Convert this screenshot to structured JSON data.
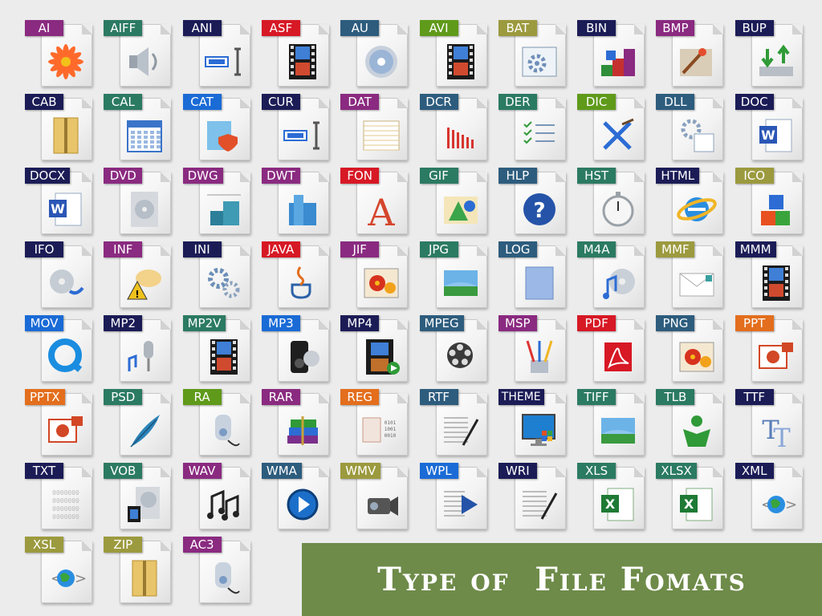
{
  "banner": {
    "title": "Type of  File Fomats"
  },
  "colors": {
    "banner": "#6e8b49",
    "purple": "#8a2a80",
    "teal": "#2b7a62",
    "navy": "#1b1c56",
    "red": "#d71825",
    "steel": "#2d5c7d",
    "green": "#5f9a1a",
    "olive": "#9c9a3e",
    "blue": "#1a6bd6",
    "orange": "#e36e1d"
  },
  "file_types": [
    {
      "label": "AI",
      "color": "purple",
      "icon": "flower-icon"
    },
    {
      "label": "AIFF",
      "color": "teal",
      "icon": "speaker-icon"
    },
    {
      "label": "ANI",
      "color": "navy",
      "icon": "text-cursor-icon"
    },
    {
      "label": "ASF",
      "color": "red",
      "icon": "film-strip-icon"
    },
    {
      "label": "AU",
      "color": "steel",
      "icon": "cd-icon"
    },
    {
      "label": "AVI",
      "color": "green",
      "icon": "film-strip-icon"
    },
    {
      "label": "BAT",
      "color": "olive",
      "icon": "gear-window-icon"
    },
    {
      "label": "BIN",
      "color": "navy",
      "icon": "blocks-icon"
    },
    {
      "label": "BMP",
      "color": "purple",
      "icon": "paint-brush-icon"
    },
    {
      "label": "BUP",
      "color": "navy",
      "icon": "backup-drive-icon"
    },
    {
      "label": "CAB",
      "color": "navy",
      "icon": "zip-folder-icon"
    },
    {
      "label": "CAL",
      "color": "teal",
      "icon": "calendar-icon"
    },
    {
      "label": "CAT",
      "color": "blue",
      "icon": "security-catalog-icon"
    },
    {
      "label": "CUR",
      "color": "navy",
      "icon": "text-cursor-icon"
    },
    {
      "label": "DAT",
      "color": "purple",
      "icon": "spreadsheet-icon"
    },
    {
      "label": "DCR",
      "color": "steel",
      "icon": "bar-chart-icon"
    },
    {
      "label": "DER",
      "color": "teal",
      "icon": "checklist-icon"
    },
    {
      "label": "DIC",
      "color": "green",
      "icon": "pen-arrows-icon"
    },
    {
      "label": "DLL",
      "color": "steel",
      "icon": "gear-doc-icon"
    },
    {
      "label": "DOC",
      "color": "navy",
      "icon": "word-icon"
    },
    {
      "label": "DOCX",
      "color": "navy",
      "icon": "word-icon"
    },
    {
      "label": "DVD",
      "color": "purple",
      "icon": "dvd-icon"
    },
    {
      "label": "DWG",
      "color": "purple",
      "icon": "cad-drawing-icon"
    },
    {
      "label": "DWT",
      "color": "purple",
      "icon": "building-icon"
    },
    {
      "label": "FON",
      "color": "red",
      "icon": "font-letter-icon"
    },
    {
      "label": "GIF",
      "color": "teal",
      "icon": "shapes-picture-icon"
    },
    {
      "label": "HLP",
      "color": "steel",
      "icon": "help-question-icon"
    },
    {
      "label": "HST",
      "color": "teal",
      "icon": "stopwatch-icon"
    },
    {
      "label": "HTML",
      "color": "navy",
      "icon": "internet-explorer-icon"
    },
    {
      "label": "ICO",
      "color": "olive",
      "icon": "cubes-icon"
    },
    {
      "label": "IFO",
      "color": "navy",
      "icon": "dvd-sync-icon"
    },
    {
      "label": "INF",
      "color": "purple",
      "icon": "speech-bubble-warning-icon"
    },
    {
      "label": "INI",
      "color": "navy",
      "icon": "gears-icon"
    },
    {
      "label": "JAVA",
      "color": "red",
      "icon": "java-cup-icon"
    },
    {
      "label": "JIF",
      "color": "purple",
      "icon": "flower-photo-icon"
    },
    {
      "label": "JPG",
      "color": "teal",
      "icon": "landscape-photo-icon"
    },
    {
      "label": "LOG",
      "color": "steel",
      "icon": "notepad-icon"
    },
    {
      "label": "M4A",
      "color": "teal",
      "icon": "music-cd-icon"
    },
    {
      "label": "MMF",
      "color": "olive",
      "icon": "envelope-icon"
    },
    {
      "label": "MMM",
      "color": "navy",
      "icon": "film-strip-icon"
    },
    {
      "label": "MOV",
      "color": "blue",
      "icon": "quicktime-icon"
    },
    {
      "label": "MP2",
      "color": "navy",
      "icon": "microphone-note-icon"
    },
    {
      "label": "MP2V",
      "color": "teal",
      "icon": "film-strip-icon"
    },
    {
      "label": "MP3",
      "color": "blue",
      "icon": "mp3-player-icon"
    },
    {
      "label": "MP4",
      "color": "navy",
      "icon": "film-play-icon"
    },
    {
      "label": "MPEG",
      "color": "steel",
      "icon": "film-reel-icon"
    },
    {
      "label": "MSP",
      "color": "purple",
      "icon": "paint-brushes-icon"
    },
    {
      "label": "PDF",
      "color": "red",
      "icon": "acrobat-icon"
    },
    {
      "label": "PNG",
      "color": "steel",
      "icon": "flower-photo-icon"
    },
    {
      "label": "PPT",
      "color": "orange",
      "icon": "powerpoint-icon"
    },
    {
      "label": "PPTX",
      "color": "orange",
      "icon": "powerpoint-icon"
    },
    {
      "label": "PSD",
      "color": "teal",
      "icon": "feather-icon"
    },
    {
      "label": "RA",
      "color": "green",
      "icon": "media-player-icon"
    },
    {
      "label": "RAR",
      "color": "purple",
      "icon": "rar-books-icon"
    },
    {
      "label": "REG",
      "color": "orange",
      "icon": "registry-binary-icon"
    },
    {
      "label": "RTF",
      "color": "steel",
      "icon": "pen-document-icon"
    },
    {
      "label": "THEME",
      "color": "navy",
      "icon": "windows-monitor-icon"
    },
    {
      "label": "TIFF",
      "color": "teal",
      "icon": "landscape-photo-icon"
    },
    {
      "label": "TLB",
      "color": "teal",
      "icon": "person-library-icon"
    },
    {
      "label": "TTF",
      "color": "navy",
      "icon": "truetype-icon"
    },
    {
      "label": "TXT",
      "color": "navy",
      "icon": "binary-text-icon"
    },
    {
      "label": "VOB",
      "color": "teal",
      "icon": "dvd-film-icon"
    },
    {
      "label": "WAV",
      "color": "purple",
      "icon": "music-notes-icon"
    },
    {
      "label": "WMA",
      "color": "steel",
      "icon": "play-circle-icon"
    },
    {
      "label": "WMV",
      "color": "olive",
      "icon": "camcorder-icon"
    },
    {
      "label": "WPL",
      "color": "blue",
      "icon": "playlist-play-icon"
    },
    {
      "label": "WRI",
      "color": "navy",
      "icon": "pen-document-icon"
    },
    {
      "label": "XLS",
      "color": "teal",
      "icon": "excel-icon"
    },
    {
      "label": "XLSX",
      "color": "teal",
      "icon": "excel-icon"
    },
    {
      "label": "XML",
      "color": "navy",
      "icon": "globe-code-icon"
    },
    {
      "label": "XSL",
      "color": "olive",
      "icon": "globe-code-icon"
    },
    {
      "label": "ZIP",
      "color": "olive",
      "icon": "zip-folder-icon"
    },
    {
      "label": "AC3",
      "color": "purple",
      "icon": "media-player-icon"
    }
  ]
}
